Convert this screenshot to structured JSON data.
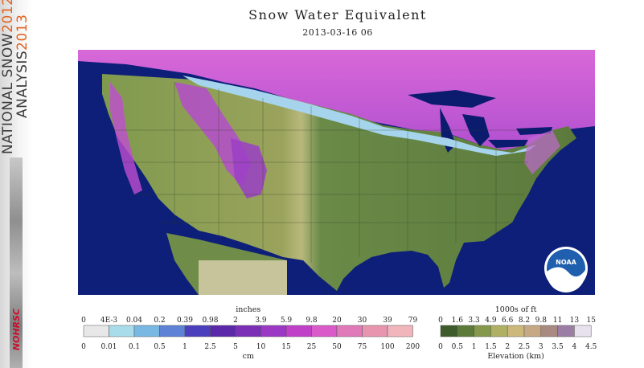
{
  "map": {
    "title": "Snow Water Equivalent",
    "timestamp": "2013-03-16 06",
    "logo_text": "NOAA"
  },
  "sidebar": {
    "line1_word": "NATIONAL SNOW",
    "line1_year": "2012",
    "line2_word": "ANALYSIS",
    "line2_year": "2013",
    "logo_text": "NOHRSC"
  },
  "swe_legend": {
    "top_unit": "inches",
    "bottom_unit": "cm",
    "inch_ticks": [
      "0",
      "4E-3",
      "0.04",
      "0.2",
      "0.39",
      "0.98",
      "2",
      "3.9",
      "5.9",
      "9.8",
      "20",
      "30",
      "39",
      "79"
    ],
    "cm_ticks": [
      "0",
      "0.01",
      "0.1",
      "0.5",
      "1",
      "2.5",
      "5",
      "10",
      "15",
      "25",
      "50",
      "75",
      "100",
      "200"
    ],
    "colors": [
      "#e8e8e8",
      "#a9dcea",
      "#78b8e2",
      "#5d82d6",
      "#4b3fbd",
      "#5a28a8",
      "#7a2fb6",
      "#9b38c4",
      "#c040c8",
      "#d95ac8",
      "#e07ab8",
      "#e896b0",
      "#f0b6bc"
    ]
  },
  "elev_legend": {
    "top_unit": "1000s of ft",
    "bottom_unit": "Elevation (km)",
    "ft_ticks": [
      "0",
      "1.6",
      "3.3",
      "4.9",
      "6.6",
      "8.2",
      "9.8",
      "11",
      "13",
      "15"
    ],
    "km_ticks": [
      "0",
      "0.5",
      "1",
      "1.5",
      "2",
      "2.5",
      "3",
      "3.5",
      "4",
      "4.5"
    ],
    "colors": [
      "#3d5b2b",
      "#5c7a3a",
      "#86984c",
      "#b0b064",
      "#cbb87a",
      "#c6a884",
      "#a98a80",
      "#9c7ea4",
      "#e8e2ee"
    ]
  }
}
